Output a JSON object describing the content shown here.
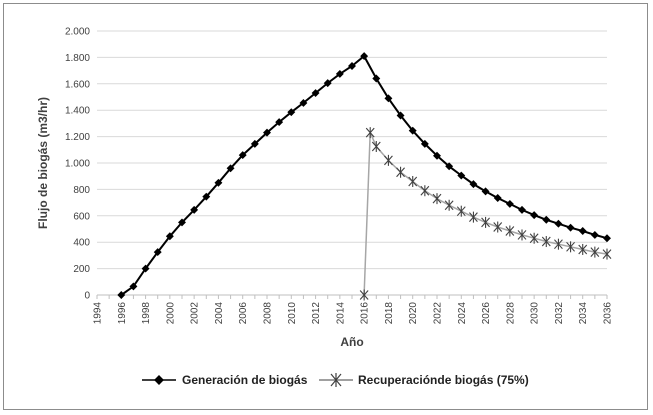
{
  "chart_data": {
    "type": "line",
    "title": "",
    "xlabel": "Año",
    "ylabel": "Flujo de biogás (m3/hr)",
    "xlim": [
      1994,
      2036
    ],
    "ylim": [
      0,
      2000
    ],
    "x_ticks": [
      1994,
      1996,
      1998,
      2000,
      2002,
      2004,
      2006,
      2008,
      2010,
      2012,
      2014,
      2016,
      2018,
      2020,
      2022,
      2024,
      2026,
      2028,
      2030,
      2032,
      2034,
      2036
    ],
    "y_ticks": [
      0,
      200,
      400,
      600,
      800,
      1000,
      1200,
      1400,
      1600,
      1800,
      2000
    ],
    "y_tick_labels": [
      "0",
      "200",
      "400",
      "600",
      "800",
      "1.000",
      "1.200",
      "1.400",
      "1.600",
      "1.800",
      "2.000"
    ],
    "grid": "horizontal",
    "legend_position": "bottom",
    "series": [
      {
        "name": "Generación de biogás",
        "color": "#000000",
        "marker": "diamond",
        "x": [
          1996,
          1997,
          1998,
          1999,
          2000,
          2001,
          2002,
          2003,
          2004,
          2005,
          2006,
          2007,
          2008,
          2009,
          2010,
          2011,
          2012,
          2013,
          2014,
          2015,
          2016,
          2017,
          2018,
          2019,
          2020,
          2021,
          2022,
          2023,
          2024,
          2025,
          2026,
          2027,
          2028,
          2029,
          2030,
          2031,
          2032,
          2033,
          2034,
          2035,
          2036
        ],
        "values": [
          0,
          65,
          200,
          325,
          445,
          550,
          645,
          745,
          850,
          960,
          1060,
          1145,
          1230,
          1310,
          1385,
          1455,
          1530,
          1605,
          1675,
          1735,
          1810,
          1640,
          1490,
          1360,
          1245,
          1145,
          1055,
          975,
          905,
          840,
          785,
          735,
          690,
          645,
          605,
          570,
          540,
          510,
          485,
          455,
          430
        ]
      },
      {
        "name": "Recuperacióndе biogás (75%)",
        "color": "#808080",
        "marker": "asterisk",
        "x": [
          2016,
          2016.5,
          2017,
          2018,
          2019,
          2020,
          2021,
          2022,
          2023,
          2024,
          2025,
          2026,
          2027,
          2028,
          2029,
          2030,
          2031,
          2032,
          2033,
          2034,
          2035,
          2036
        ],
        "values": [
          0,
          1230,
          1125,
          1020,
          930,
          860,
          790,
          730,
          680,
          635,
          590,
          550,
          515,
          485,
          455,
          430,
          405,
          385,
          365,
          345,
          325,
          310
        ]
      }
    ]
  }
}
